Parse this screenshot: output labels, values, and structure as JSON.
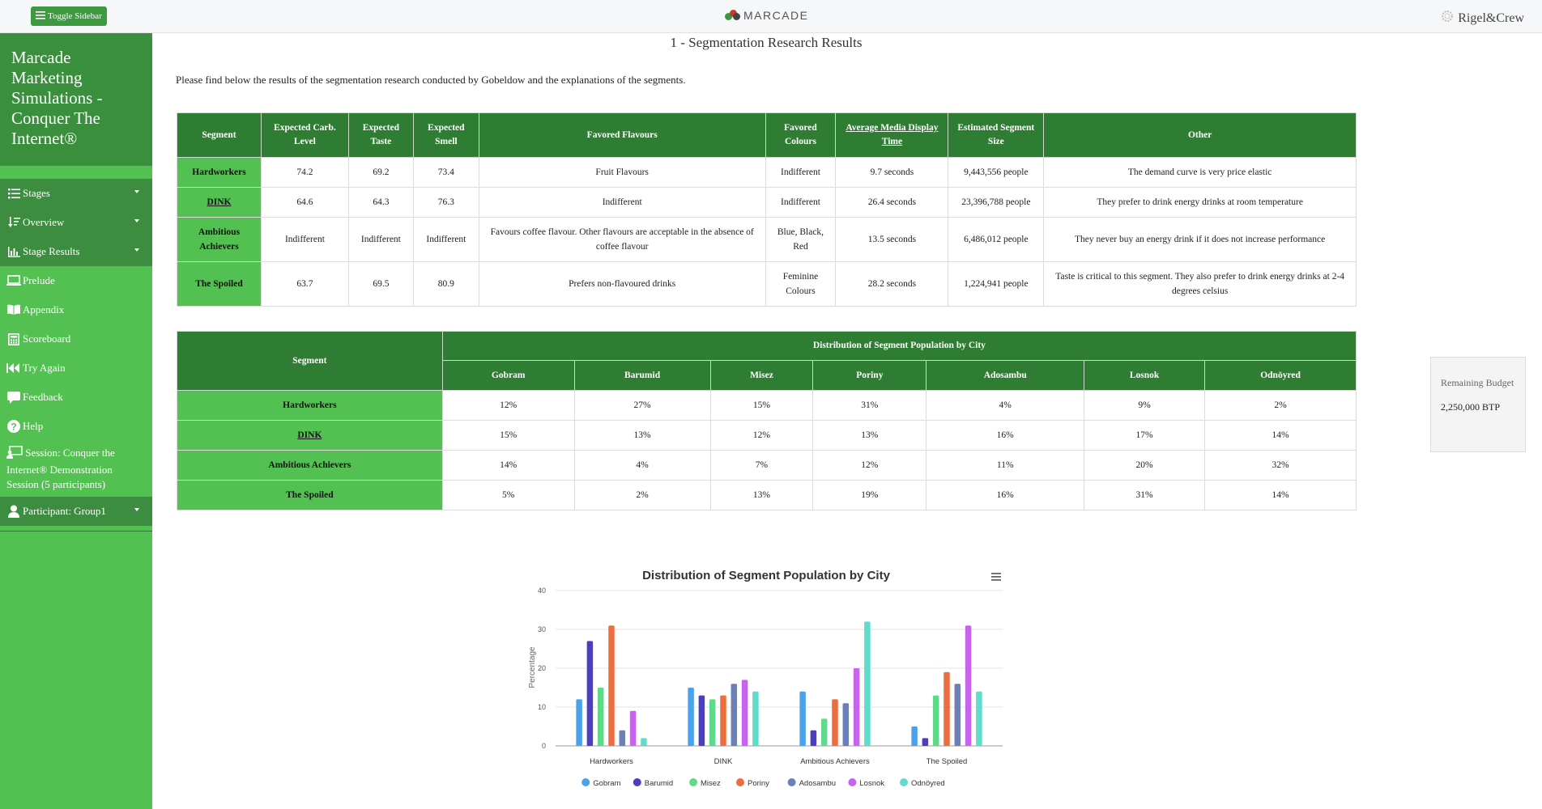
{
  "topbar": {
    "toggle_label": "Toggle Sidebar",
    "brand": "MARCADE",
    "client": "Rigel&Crew"
  },
  "sidebar": {
    "title": "Marcade Marketing Simulations - Conquer The Internet®",
    "items": [
      {
        "label": "Stages",
        "icon": "list-icon"
      },
      {
        "label": "Overview",
        "icon": "sort-icon"
      },
      {
        "label": "Stage Results",
        "icon": "bar-chart-icon"
      },
      {
        "label": "Prelude",
        "icon": "laptop-icon"
      },
      {
        "label": "Appendix",
        "icon": "book-icon"
      },
      {
        "label": "Scoreboard",
        "icon": "calculator-icon"
      },
      {
        "label": "Try Again",
        "icon": "rewind-icon"
      },
      {
        "label": "Feedback",
        "icon": "comment-icon"
      },
      {
        "label": "Help",
        "icon": "question-icon"
      }
    ],
    "session": "Session: Conquer the Internet® Demonstration Session (5 participants)",
    "participant": "Participant: Group1"
  },
  "main": {
    "title": "1 - Segmentation Research Results",
    "intro": "Please find below the results of the segmentation research conducted by Gobeldow and the explanations of the segments."
  },
  "segment_table": {
    "headers": [
      "Segment",
      "Expected Carb. Level",
      "Expected Taste",
      "Expected Smell",
      "Favored Flavours",
      "Favored Colours",
      "Average Media Display Time",
      "Estimated Segment Size",
      "Other"
    ],
    "rows": [
      [
        "Hardworkers",
        "74.2",
        "69.2",
        "73.4",
        "Fruit Flavours",
        "Indifferent",
        "9.7 seconds",
        "9,443,556 people",
        "The demand curve is very price elastic"
      ],
      [
        "DINK",
        "64.6",
        "64.3",
        "76.3",
        "Indifferent",
        "Indifferent",
        "26.4 seconds",
        "23,396,788 people",
        "They prefer to drink energy drinks at room temperature"
      ],
      [
        "Ambitious Achievers",
        "Indifferent",
        "Indifferent",
        "Indifferent",
        "Favours coffee flavour. Other flavours are acceptable in the absence of coffee flavour",
        "Blue, Black, Red",
        "13.5 seconds",
        "6,486,012 people",
        "They never buy an energy drink if it does not increase performance"
      ],
      [
        "The Spoiled",
        "63.7",
        "69.5",
        "80.9",
        "Prefers non-flavoured drinks",
        "Feminine Colours",
        "28.2 seconds",
        "1,224,941 people",
        "Taste is critical to this segment. They also prefer to drink energy drinks at 2-4 degrees celsius"
      ]
    ]
  },
  "city_table": {
    "segment_header": "Segment",
    "group_header": "Distribution of Segment Population by City",
    "cities": [
      "Gobram",
      "Barumid",
      "Misez",
      "Poriny",
      "Adosambu",
      "Losnok",
      "Odnöyred"
    ],
    "rows": [
      {
        "segment": "Hardworkers",
        "values": [
          "12%",
          "27%",
          "15%",
          "31%",
          "4%",
          "9%",
          "2%"
        ]
      },
      {
        "segment": "DINK",
        "values": [
          "15%",
          "13%",
          "12%",
          "13%",
          "16%",
          "17%",
          "14%"
        ]
      },
      {
        "segment": "Ambitious Achievers",
        "values": [
          "14%",
          "4%",
          "7%",
          "12%",
          "11%",
          "20%",
          "32%"
        ]
      },
      {
        "segment": "The Spoiled",
        "values": [
          "5%",
          "2%",
          "13%",
          "19%",
          "16%",
          "31%",
          "14%"
        ]
      }
    ]
  },
  "budget": {
    "label": "Remaining Budget",
    "value": "2,250,000 BTP"
  },
  "chart_data": {
    "type": "bar",
    "title": "Distribution of Segment Population by City",
    "xlabel": "",
    "ylabel": "Percentage",
    "ylim": [
      0,
      40
    ],
    "yticks": [
      0,
      10,
      20,
      30,
      40
    ],
    "grid": true,
    "legend": "bottom",
    "categories": [
      "Hardworkers",
      "DINK",
      "Ambitious Achievers",
      "The Spoiled"
    ],
    "series": [
      {
        "name": "Gobram",
        "values": [
          12,
          15,
          14,
          5
        ],
        "color": "#4aa3ea"
      },
      {
        "name": "Barumid",
        "values": [
          27,
          13,
          4,
          2
        ],
        "color": "#4b3fc0"
      },
      {
        "name": "Misez",
        "values": [
          15,
          12,
          7,
          13
        ],
        "color": "#5fd98a"
      },
      {
        "name": "Poriny",
        "values": [
          31,
          13,
          12,
          19
        ],
        "color": "#ec6e3f"
      },
      {
        "name": "Adosambu",
        "values": [
          4,
          16,
          11,
          16
        ],
        "color": "#6b7fb8"
      },
      {
        "name": "Losnok",
        "values": [
          9,
          17,
          20,
          31
        ],
        "color": "#c863ee"
      },
      {
        "name": "Odnöyred",
        "values": [
          2,
          14,
          32,
          14
        ],
        "color": "#5fdccc"
      }
    ]
  }
}
